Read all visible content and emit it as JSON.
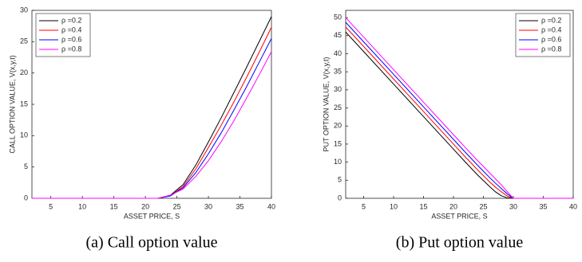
{
  "chart_data": [
    {
      "type": "line",
      "caption": "(a) Call option value",
      "xlabel": "ASSET PRICE, S",
      "ylabel": "CALL OPTION VALUE, V(x,y,t)",
      "x": [
        2,
        5,
        10,
        15,
        20,
        22,
        24,
        26,
        28,
        30,
        32,
        34,
        36,
        38,
        40
      ],
      "series": [
        {
          "name": "ρ =0.2",
          "color": "#000000",
          "values": [
            0,
            0,
            0,
            0,
            0,
            0,
            0.5,
            2.2,
            5.3,
            9,
            12.8,
            16.8,
            20.8,
            24.9,
            29
          ]
        },
        {
          "name": "ρ =0.4",
          "color": "#ff0000",
          "values": [
            0,
            0,
            0,
            0,
            0,
            0,
            0.4,
            1.9,
            4.7,
            8.1,
            11.6,
            15.3,
            19.2,
            23.2,
            27.3
          ]
        },
        {
          "name": "ρ =0.6",
          "color": "#0000ff",
          "values": [
            0,
            0,
            0,
            0,
            0,
            0,
            0.4,
            1.7,
            4.1,
            7.1,
            10.4,
            14,
            17.7,
            21.6,
            25.5
          ]
        },
        {
          "name": "ρ =0.8",
          "color": "#ff00ff",
          "values": [
            0,
            0,
            0,
            0,
            0,
            0,
            0.5,
            1.5,
            3.5,
            6,
            9,
            12.3,
            15.9,
            19.6,
            23.4
          ]
        }
      ],
      "xlim": [
        2,
        40
      ],
      "ylim": [
        0,
        30
      ],
      "xticks": [
        5,
        10,
        15,
        20,
        25,
        30,
        35,
        40
      ],
      "yticks": [
        0,
        5,
        10,
        15,
        20,
        25,
        30
      ],
      "legend": "upper left"
    },
    {
      "type": "line",
      "caption": "(b) Put option value",
      "xlabel": "ASSET PRICE, S",
      "ylabel": "PUT OPTION VALUE, V(x,y,t)",
      "x": [
        2,
        5,
        10,
        15,
        20,
        22,
        24,
        26,
        27,
        28,
        29,
        30,
        35,
        40
      ],
      "series": [
        {
          "name": "ρ =0.2",
          "color": "#000000",
          "values": [
            46,
            40.6,
            31.6,
            22.6,
            13.6,
            10,
            6.5,
            3.3,
            1.8,
            0.7,
            0.1,
            0,
            0,
            0
          ]
        },
        {
          "name": "ρ =0.4",
          "color": "#ff0000",
          "values": [
            47.4,
            42,
            33,
            24,
            15,
            11.4,
            7.9,
            4.6,
            3.1,
            1.8,
            0.6,
            0,
            0,
            0
          ]
        },
        {
          "name": "ρ =0.6",
          "color": "#0000ff",
          "values": [
            48.7,
            43.3,
            34.3,
            25.3,
            16.3,
            12.7,
            9.2,
            5.8,
            4.2,
            2.7,
            1.2,
            0,
            0,
            0
          ]
        },
        {
          "name": "ρ =0.8",
          "color": "#ff00ff",
          "values": [
            50,
            44.6,
            35.6,
            26.6,
            17.6,
            14,
            10.5,
            7.1,
            5.4,
            3.7,
            1.8,
            0,
            0,
            0
          ]
        }
      ],
      "xlim": [
        2,
        40
      ],
      "ylim": [
        0,
        52
      ],
      "xticks": [
        5,
        10,
        15,
        20,
        25,
        30,
        35,
        40
      ],
      "yticks": [
        0,
        5,
        10,
        15,
        20,
        25,
        30,
        35,
        40,
        45,
        50
      ],
      "legend": "upper right"
    }
  ]
}
